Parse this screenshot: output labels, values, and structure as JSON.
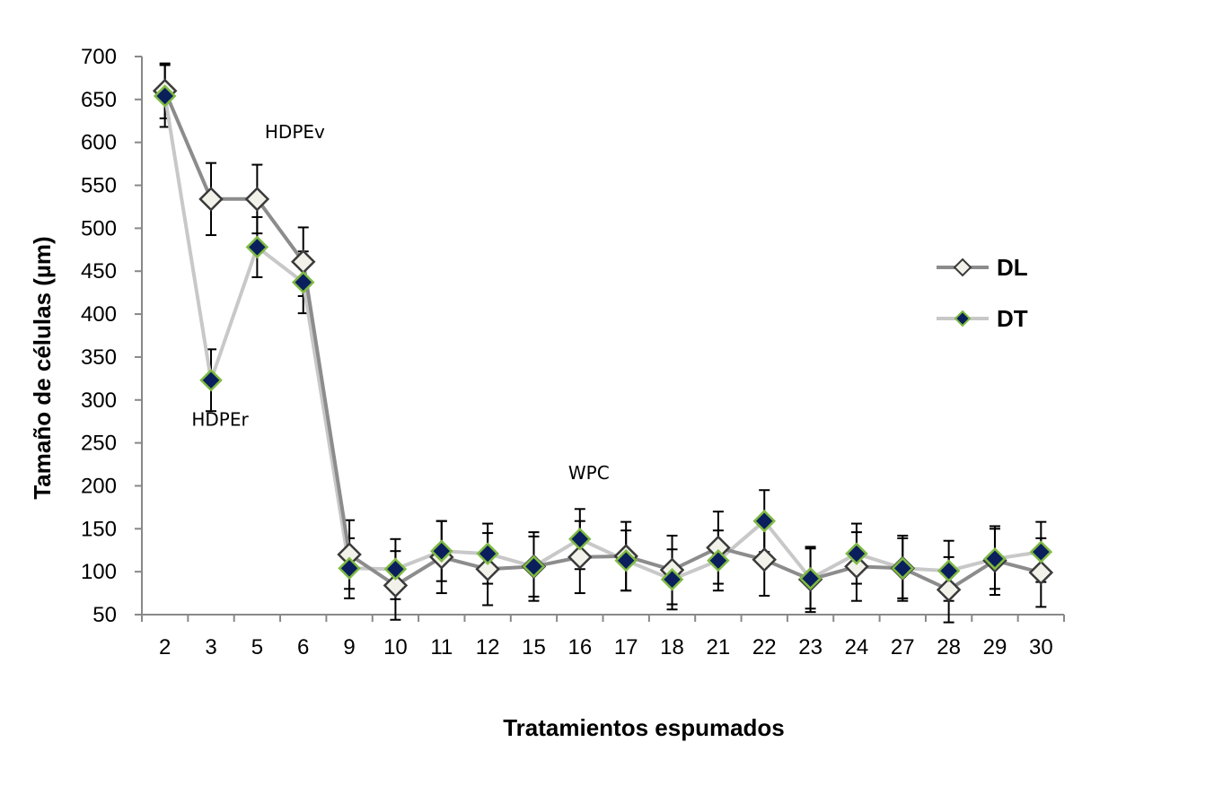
{
  "chart_data": {
    "type": "line",
    "title": "",
    "xlabel": "Tratamientos espumados",
    "ylabel": "Tamaño de células (µm)",
    "categories": [
      "2",
      "3",
      "5",
      "6",
      "9",
      "10",
      "11",
      "12",
      "15",
      "16",
      "17",
      "18",
      "21",
      "22",
      "23",
      "24",
      "27",
      "28",
      "29",
      "30"
    ],
    "ylim": [
      50,
      700
    ],
    "yticks": [
      50,
      100,
      150,
      200,
      250,
      300,
      350,
      400,
      450,
      500,
      550,
      600,
      650,
      700
    ],
    "grid": false,
    "legend_position": "right",
    "series": [
      {
        "name": "DL",
        "line_color": "#8c8c8c",
        "marker": "diamond",
        "marker_fill": "#f2f2ea",
        "marker_stroke": "#3a3a3a",
        "values": [
          660,
          534,
          534,
          461,
          120,
          84,
          117,
          103,
          106,
          117,
          118,
          102,
          128,
          114,
          91,
          106,
          104,
          79,
          113,
          99
        ],
        "errors": [
          32,
          42,
          40,
          40,
          40,
          40,
          42,
          42,
          40,
          42,
          40,
          40,
          42,
          42,
          38,
          40,
          38,
          38,
          40,
          40
        ]
      },
      {
        "name": "DT",
        "line_color": "#c8c8c8",
        "marker": "diamond",
        "marker_fill": "#0a1f5c",
        "marker_stroke": "#7fba42",
        "values": [
          654,
          323,
          478,
          437,
          104,
          103,
          124,
          121,
          106,
          138,
          113,
          91,
          113,
          159,
          92,
          121,
          104,
          101,
          115,
          123
        ],
        "errors": [
          36,
          36,
          35,
          36,
          35,
          35,
          35,
          35,
          35,
          35,
          35,
          35,
          35,
          36,
          35,
          35,
          35,
          35,
          35,
          35
        ]
      }
    ],
    "annotations": [
      {
        "text": "HDPEv",
        "category": "5",
        "value": 605
      },
      {
        "text": "HDPEr",
        "category": "3",
        "value": 270
      },
      {
        "text": "WPC",
        "category": "16",
        "value": 208
      }
    ]
  }
}
